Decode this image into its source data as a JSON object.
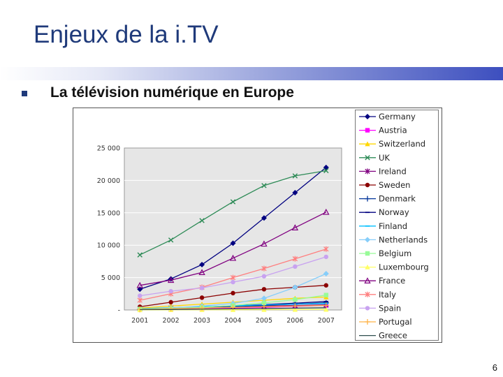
{
  "slide": {
    "title": "Enjeux de la i.TV",
    "bullet_text": "La télévision numérique en Europe",
    "page_number": "6"
  },
  "chart_data": {
    "type": "line",
    "title": "",
    "xlabel": "",
    "ylabel": "",
    "x": [
      "2001",
      "2002",
      "2003",
      "2004",
      "2005",
      "2006",
      "2007"
    ],
    "ylim": [
      0,
      25000
    ],
    "yticks": [
      0,
      5000,
      10000,
      15000,
      20000,
      25000
    ],
    "ytick_labels": [
      "-",
      "5 000",
      "10 000",
      "15 000",
      "20 000",
      "25 000"
    ],
    "grid": true,
    "legend_position": "right",
    "series": [
      {
        "name": "Germany",
        "color": "#000080",
        "marker": "diamond",
        "values": [
          3200,
          4800,
          7000,
          10300,
          14200,
          18100,
          22000
        ]
      },
      {
        "name": "Austria",
        "color": "#ff00ff",
        "marker": "square",
        "values": [
          100,
          150,
          200,
          300,
          400,
          550,
          700
        ]
      },
      {
        "name": "Switzerland",
        "color": "#ffd700",
        "marker": "triangle",
        "values": [
          300,
          600,
          900,
          1200,
          1500,
          1800,
          2000
        ]
      },
      {
        "name": "UK",
        "color": "#2e8b57",
        "marker": "x",
        "values": [
          8500,
          10800,
          13800,
          16700,
          19200,
          20700,
          21500
        ]
      },
      {
        "name": "Ireland",
        "color": "#800080",
        "marker": "star",
        "values": [
          200,
          300,
          400,
          500,
          600,
          700,
          800
        ]
      },
      {
        "name": "Sweden",
        "color": "#8b0000",
        "marker": "circle",
        "values": [
          500,
          1200,
          1900,
          2600,
          3200,
          3500,
          3800
        ]
      },
      {
        "name": "Denmark",
        "color": "#003399",
        "marker": "plus",
        "values": [
          100,
          200,
          300,
          500,
          700,
          900,
          1100
        ]
      },
      {
        "name": "Norway",
        "color": "#000080",
        "marker": "dash",
        "values": [
          150,
          300,
          450,
          650,
          850,
          1050,
          1300
        ]
      },
      {
        "name": "Finland",
        "color": "#00bfff",
        "marker": "dash",
        "values": [
          200,
          350,
          500,
          650,
          800,
          900,
          1000
        ]
      },
      {
        "name": "Netherlands",
        "color": "#87cefa",
        "marker": "diamond",
        "values": [
          100,
          300,
          600,
          1000,
          1800,
          3500,
          5600
        ]
      },
      {
        "name": "Belgium",
        "color": "#98fb98",
        "marker": "square",
        "values": [
          150,
          250,
          400,
          700,
          1100,
          1600,
          2300
        ]
      },
      {
        "name": "Luxembourg",
        "color": "#ffff66",
        "marker": "triangle",
        "values": [
          10,
          20,
          30,
          40,
          50,
          60,
          80
        ]
      },
      {
        "name": "France",
        "color": "#800080",
        "marker": "triangle-open",
        "values": [
          3800,
          4600,
          5800,
          8000,
          10200,
          12700,
          15100
        ]
      },
      {
        "name": "Italy",
        "color": "#ff7f7f",
        "marker": "star",
        "values": [
          1500,
          2500,
          3500,
          5000,
          6400,
          7900,
          9400
        ]
      },
      {
        "name": "Spain",
        "color": "#c8a2f0",
        "marker": "circle",
        "values": [
          2200,
          2900,
          3400,
          4300,
          5200,
          6700,
          8200
        ]
      },
      {
        "name": "Portugal",
        "color": "#ffb347",
        "marker": "plus",
        "values": [
          100,
          200,
          300,
          400,
          500,
          600,
          700
        ]
      },
      {
        "name": "Greece",
        "color": "#2f4f4f",
        "marker": "none",
        "values": [
          50,
          80,
          120,
          170,
          220,
          280,
          350
        ]
      }
    ]
  }
}
